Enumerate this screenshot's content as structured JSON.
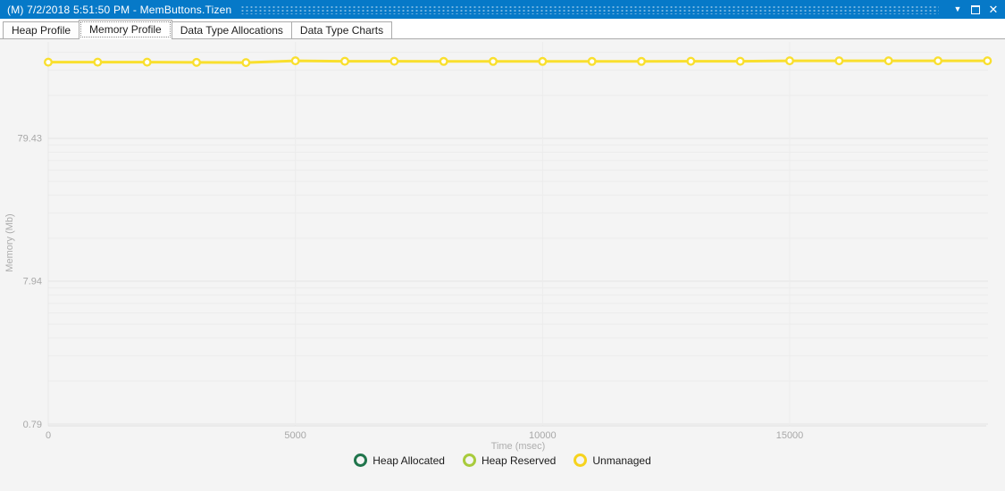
{
  "titlebar": {
    "title": "(M) 7/2/2018 5:51:50 PM - MemButtons.Tizen",
    "window_menu_glyph": "▼",
    "close_glyph": "✕"
  },
  "tabs": [
    {
      "label": "Heap Profile",
      "selected": false
    },
    {
      "label": "Memory Profile",
      "selected": true
    },
    {
      "label": "Data Type Allocations",
      "selected": false
    },
    {
      "label": "Data Type Charts",
      "selected": false
    }
  ],
  "chart_data": {
    "type": "line",
    "title": "",
    "xlabel": "Time (msec)",
    "ylabel": "Memory (Mb)",
    "y_scale": "log",
    "grid": true,
    "legend_position": "bottom-center",
    "xlim": [
      0,
      19000
    ],
    "ylim": [
      0.77,
      374
    ],
    "x_ticks": [
      {
        "value": 0,
        "label": "0"
      },
      {
        "value": 5000,
        "label": "5000"
      },
      {
        "value": 10000,
        "label": "10000"
      },
      {
        "value": 15000,
        "label": "15000"
      }
    ],
    "y_ticks": [
      {
        "value": 0.79,
        "label": "0.79"
      },
      {
        "value": 7.94,
        "label": "7.94"
      },
      {
        "value": 79.43,
        "label": "79.43"
      }
    ],
    "series": [
      {
        "name": "Unmanaged",
        "color": "#F9DF2E",
        "marker": "circle-open",
        "points": [
          [
            0,
            270
          ],
          [
            1000,
            270
          ],
          [
            2000,
            270
          ],
          [
            3000,
            269
          ],
          [
            4000,
            268
          ],
          [
            5000,
            276
          ],
          [
            6000,
            274
          ],
          [
            7000,
            274
          ],
          [
            8000,
            273
          ],
          [
            9000,
            273
          ],
          [
            10000,
            273
          ],
          [
            11000,
            273
          ],
          [
            12000,
            273
          ],
          [
            13000,
            274
          ],
          [
            14000,
            274
          ],
          [
            15000,
            276
          ],
          [
            16000,
            276
          ],
          [
            17000,
            276
          ],
          [
            18000,
            276
          ],
          [
            19000,
            276
          ]
        ]
      }
    ],
    "legend": [
      {
        "label": "Heap Allocated",
        "color": "#20754C"
      },
      {
        "label": "Heap Reserved",
        "color": "#A8CB3C"
      },
      {
        "label": "Unmanaged",
        "color": "#F6D31E"
      }
    ],
    "colors": {
      "panel_background": "#F4F4F4",
      "grid_minor": "#ECECEC",
      "grid_major": "#E3E3E3",
      "axis_line": "#E0E0E0",
      "tick_text": "#A8A8A8"
    }
  }
}
